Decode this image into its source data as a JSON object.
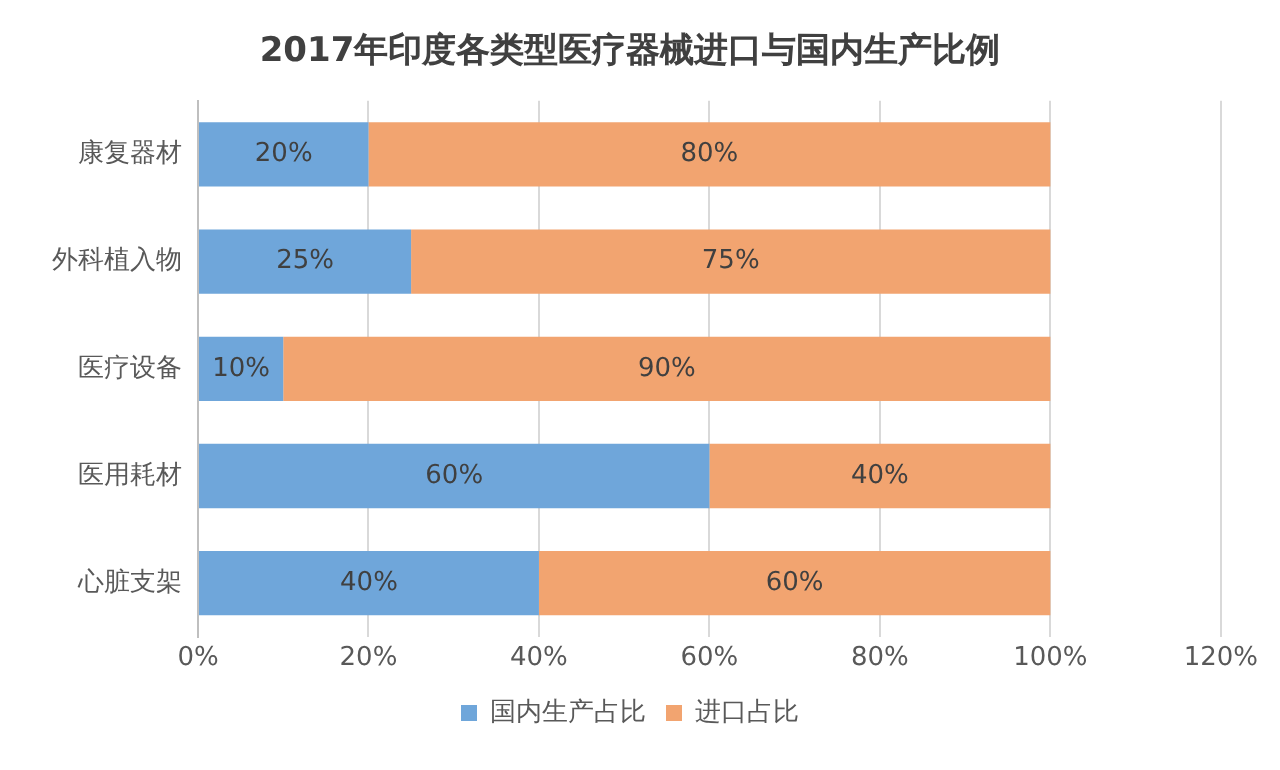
{
  "chart_data": {
    "type": "bar",
    "orientation": "horizontal",
    "stacked": true,
    "title": "2017年印度各类型医疗器械进口与国内生产比例",
    "categories": [
      "康复器材",
      "外科植入物",
      "医疗设备",
      "医用耗材",
      "心脏支架"
    ],
    "series": [
      {
        "name": "国内生产占比",
        "color": "#6fa6da",
        "values": [
          20,
          25,
          10,
          60,
          40
        ],
        "value_labels": [
          "20%",
          "25%",
          "10%",
          "60%",
          "40%"
        ]
      },
      {
        "name": "进口占比",
        "color": "#f2a470",
        "values": [
          80,
          75,
          90,
          40,
          60
        ],
        "value_labels": [
          "80%",
          "75%",
          "90%",
          "40%",
          "60%"
        ]
      }
    ],
    "xlim": [
      0,
      120
    ],
    "xticks": [
      {
        "value": 0,
        "label": "0%"
      },
      {
        "value": 20,
        "label": "20%"
      },
      {
        "value": 40,
        "label": "40%"
      },
      {
        "value": 60,
        "label": "60%"
      },
      {
        "value": 80,
        "label": "80%"
      },
      {
        "value": 100,
        "label": "100%"
      },
      {
        "value": 120,
        "label": "120%"
      }
    ],
    "grid": "x",
    "legend": "bottom"
  }
}
